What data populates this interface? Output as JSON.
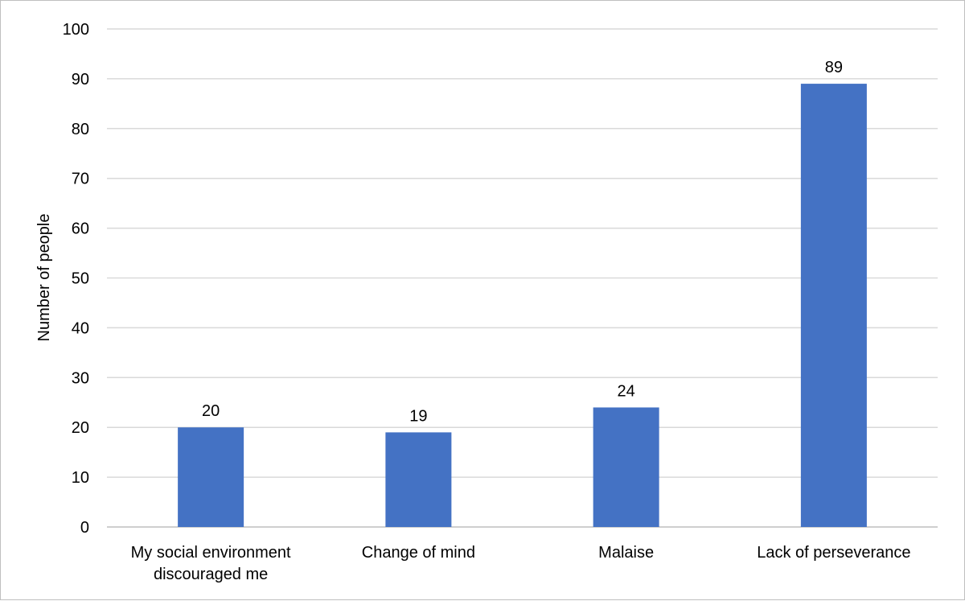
{
  "chart_data": {
    "type": "bar",
    "categories": [
      [
        "My social environment",
        "discouraged me"
      ],
      [
        "Change of mind"
      ],
      [
        "Malaise"
      ],
      [
        "Lack of perseverance"
      ]
    ],
    "values": [
      20,
      19,
      24,
      89
    ],
    "data_labels": [
      "20",
      "19",
      "24",
      "89"
    ],
    "title": "",
    "xlabel": "",
    "ylabel": "Number of people",
    "ylim": [
      0,
      100
    ],
    "yticks": [
      0,
      10,
      20,
      30,
      40,
      50,
      60,
      70,
      80,
      90,
      100
    ],
    "grid": true,
    "legend": "none",
    "bar_color": "#4472c4"
  }
}
